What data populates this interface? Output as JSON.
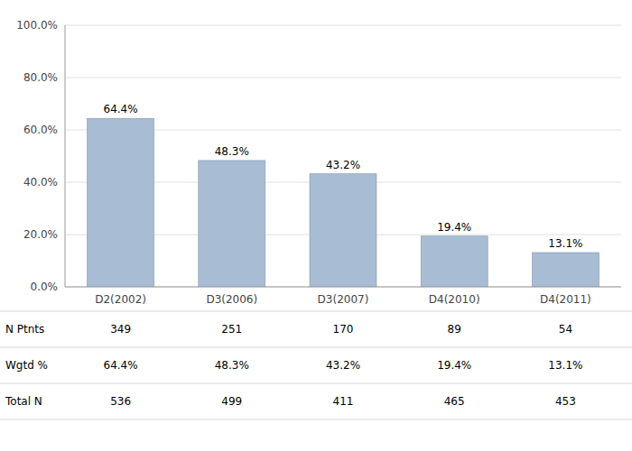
{
  "chart_data": {
    "type": "bar",
    "categories": [
      "D2(2002)",
      "D3(2006)",
      "D3(2007)",
      "D4(2010)",
      "D4(2011)"
    ],
    "values": [
      64.4,
      48.3,
      43.2,
      19.4,
      13.1
    ],
    "value_labels": [
      "64.4%",
      "48.3%",
      "43.2%",
      "19.4%",
      "13.1%"
    ],
    "data_labels": true,
    "color": "#a8bcd4",
    "ylim": [
      0,
      100
    ],
    "yticks": [
      {
        "value": 0,
        "label": "0.0%"
      },
      {
        "value": 20,
        "label": "20.0%"
      },
      {
        "value": 40,
        "label": "40.0%"
      },
      {
        "value": 60,
        "label": "60.0%"
      },
      {
        "value": 80,
        "label": "80.0%"
      },
      {
        "value": 100,
        "label": "100.0%"
      }
    ],
    "grid": true,
    "table": {
      "rows": [
        {
          "label": "N Ptnts",
          "values": [
            "349",
            "251",
            "170",
            "89",
            "54"
          ]
        },
        {
          "label": "Wgtd %",
          "values": [
            "64.4%",
            "48.3%",
            "43.2%",
            "19.4%",
            "13.1%"
          ]
        },
        {
          "label": "Total N",
          "values": [
            "536",
            "499",
            "411",
            "465",
            "453"
          ]
        }
      ]
    }
  }
}
